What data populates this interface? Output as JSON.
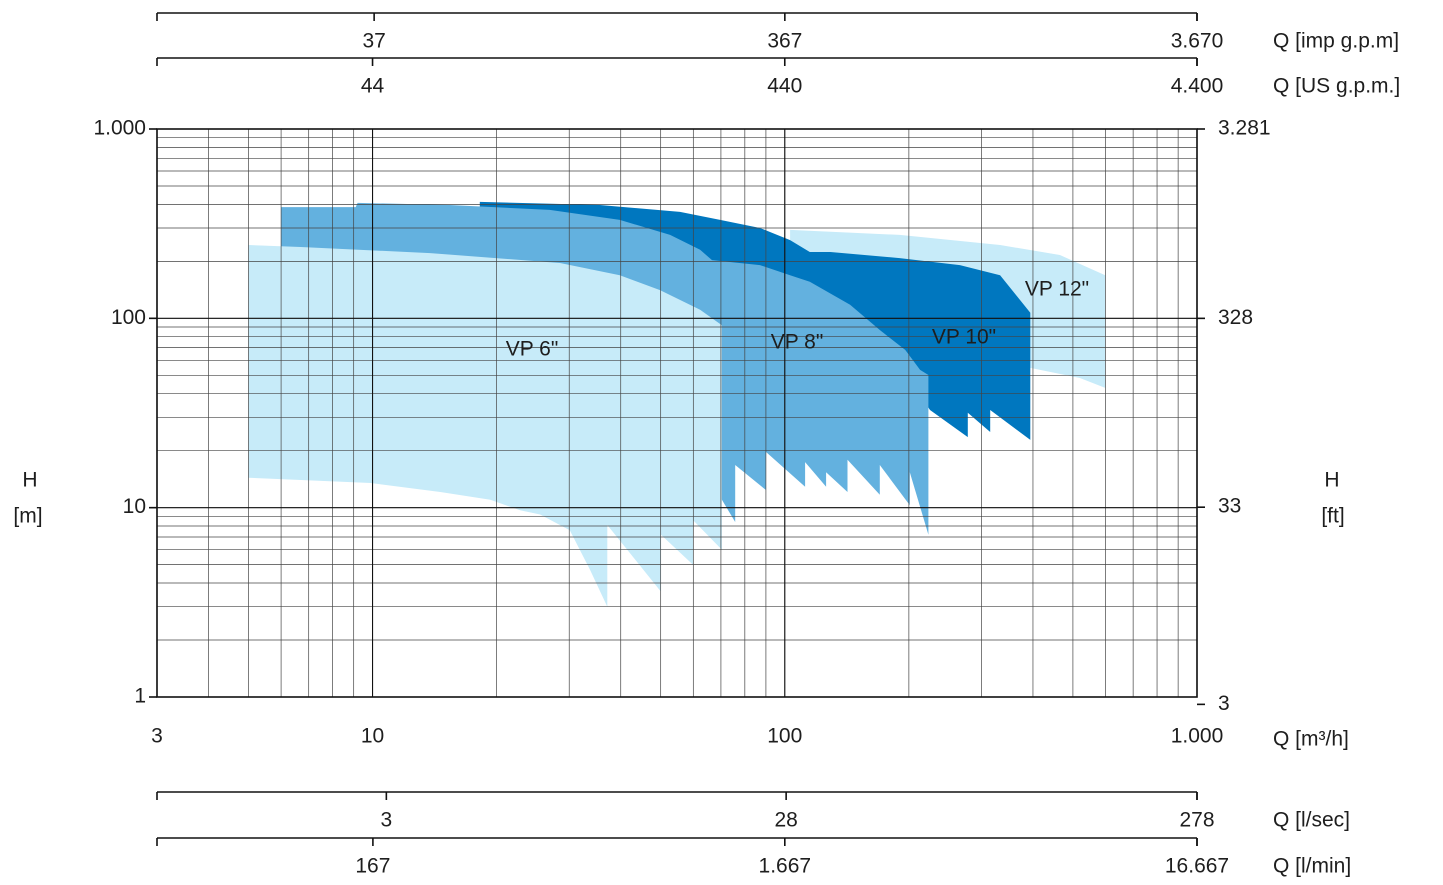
{
  "chart_data": {
    "type": "area",
    "log_x": true,
    "log_y": true,
    "grid": true,
    "minor_grid": true,
    "xlabel": "Q [m³/h]",
    "ylabel": [
      "H",
      "[m]"
    ],
    "y2label": [
      "H",
      "[ft]"
    ],
    "xlim": [
      3,
      1000
    ],
    "xticks": [
      3,
      10,
      100,
      {
        "value": 1000,
        "label": "1.000"
      }
    ],
    "ylim": [
      1,
      1000
    ],
    "yticks": [
      1,
      10,
      100,
      {
        "value": 1000,
        "label": "1.000"
      }
    ],
    "y2lim": [
      3.281,
      3281
    ],
    "y2ticks": [
      3,
      33,
      328,
      {
        "value": 3281,
        "label": "3.281"
      }
    ],
    "secondary_x_axes": [
      {
        "label": "Q [imp g.p.m]",
        "position": "top",
        "xlim": [
          11,
          3670
        ],
        "xticks": [
          37,
          367,
          {
            "value": 3670,
            "label": "3.670"
          }
        ]
      },
      {
        "label": "Q [US g.p.m.]",
        "position": "top",
        "xlim": [
          13.2,
          4400
        ],
        "xticks": [
          44,
          440,
          {
            "value": 4400,
            "label": "4.400"
          }
        ]
      },
      {
        "label": "Q [l/sec]",
        "position": "bottom",
        "xlim": [
          0.833,
          278
        ],
        "xticks": [
          3,
          28,
          278
        ]
      },
      {
        "label": "Q [l/min]",
        "position": "bottom",
        "xlim": [
          50,
          16667
        ],
        "xticks": [
          167,
          {
            "value": 1667,
            "label": "1.667"
          },
          {
            "value": 16667,
            "label": "16.667"
          }
        ]
      }
    ],
    "series": [
      {
        "name": "VP 6\"",
        "color": "#c7ebf9",
        "x": [
          5.0,
          6.7,
          13.8,
          28.5,
          39.8,
          49.8,
          62.3,
          70.4,
          70.4,
          59.9,
          59.9,
          50.1,
          50.1,
          37.1,
          37.1,
          33.7,
          30.1,
          25.5,
          22.8,
          19.3,
          14.6,
          9.9,
          6.7,
          5.0
        ],
        "values": [
          244,
          238,
          221,
          196,
          169,
          141,
          111,
          92,
          6.0,
          8.6,
          5.0,
          7.2,
          3.6,
          8.1,
          3.0,
          4.7,
          7.6,
          9.2,
          9.7,
          11,
          12.1,
          13.5,
          14,
          14.4
        ]
      },
      {
        "name": "VP 8\"",
        "color": "#63b1df",
        "x": [
          6.0,
          9.1,
          9.2,
          15.4,
          26.9,
          39.8,
          52.7,
          62.3,
          66.6,
          87.1,
          103,
          115,
          144,
          170,
          196,
          213,
          223,
          223,
          201,
          201,
          170,
          170,
          142,
          142,
          126,
          126,
          112,
          112,
          90,
          90,
          75.8,
          75.8,
          70.4,
          35.6,
          6.0
        ],
        "values": [
          387,
          387,
          407,
          397,
          374,
          331,
          276,
          230,
          203,
          191,
          169,
          156,
          118,
          86.8,
          68.1,
          53.4,
          50.2,
          7.2,
          15.4,
          10.3,
          16.8,
          11.7,
          17.9,
          12.1,
          15.4,
          12.9,
          17.4,
          12.9,
          19.7,
          12.4,
          16.8,
          8.4,
          11,
          22.8,
          29.1
        ]
      },
      {
        "name": "VP 10\"",
        "color": "#0077bf",
        "x": [
          18.2,
          35.6,
          55.7,
          69.7,
          87.1,
          103,
          115,
          129,
          190,
          266,
          333,
          394,
          394,
          315,
          315,
          278,
          278,
          225,
          201,
          62.3,
          18.2
        ],
        "values": [
          412,
          397,
          365,
          331,
          300,
          259,
          224,
          224,
          208,
          191,
          169,
          107,
          22.8,
          32.8,
          25.1,
          31.7,
          23.6,
          32.8,
          47.3,
          125,
          180
        ]
      },
      {
        "name": "VP 12\"",
        "color": "#c7ebf9",
        "x": [
          103,
          190,
          333,
          465,
          599,
          599,
          520,
          394,
          225,
          103
        ],
        "values": [
          293,
          276,
          244,
          216,
          169,
          42.9,
          48.4,
          54.7,
          37.0,
          68.1
        ]
      }
    ]
  }
}
